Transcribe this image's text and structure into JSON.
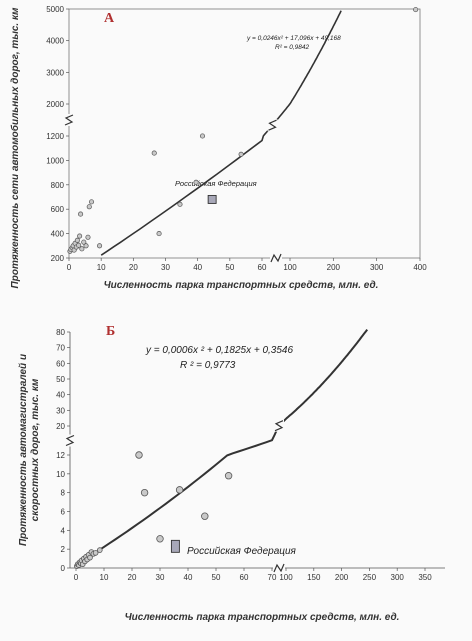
{
  "chart_data": [
    {
      "type": "scatter",
      "panel_label": "А",
      "xlabel": "Численность парка транспортных средств, млн. ед.",
      "ylabel": "Протяженность сети автомобильных дорог, тыс. км",
      "equation": "y = 0,0246x² + 17,096x + 49,168",
      "r2": "R² = 0,9842",
      "annotation": "Российская Федерация",
      "x_ticks_lower": [
        "0",
        "10",
        "20",
        "30",
        "40",
        "50",
        "60"
      ],
      "x_ticks_upper": [
        "100",
        "200",
        "300",
        "400"
      ],
      "y_ticks_lower": [
        "200",
        "400",
        "600",
        "800",
        "1000",
        "1200"
      ],
      "y_ticks_upper": [
        "2000",
        "3000",
        "4000",
        "5000"
      ],
      "axis_break": true,
      "points": [
        {
          "x": 0.3,
          "y": 255
        },
        {
          "x": 0.6,
          "y": 270
        },
        {
          "x": 1.0,
          "y": 285
        },
        {
          "x": 1.3,
          "y": 300
        },
        {
          "x": 1.6,
          "y": 265
        },
        {
          "x": 1.9,
          "y": 320
        },
        {
          "x": 2.3,
          "y": 290
        },
        {
          "x": 2.6,
          "y": 345
        },
        {
          "x": 3.0,
          "y": 305
        },
        {
          "x": 3.3,
          "y": 380
        },
        {
          "x": 3.6,
          "y": 560
        },
        {
          "x": 4.0,
          "y": 275
        },
        {
          "x": 4.6,
          "y": 330
        },
        {
          "x": 5.3,
          "y": 300
        },
        {
          "x": 5.9,
          "y": 370
        },
        {
          "x": 6.3,
          "y": 620
        },
        {
          "x": 7.0,
          "y": 660
        },
        {
          "x": 9.5,
          "y": 300
        },
        {
          "x": 26.5,
          "y": 1060
        },
        {
          "x": 28.0,
          "y": 400
        },
        {
          "x": 34.5,
          "y": 640
        },
        {
          "x": 39.5,
          "y": 820
        },
        {
          "x": 41.5,
          "y": 1200
        },
        {
          "x": 53.5,
          "y": 1050
        },
        {
          "x": 390,
          "y": 4980
        }
      ],
      "highlight": {
        "label": "Российская Федерация",
        "x": 44.5,
        "y": 680
      }
    },
    {
      "type": "scatter",
      "panel_label": "Б",
      "xlabel": "Численность парка транспортных средств, млн. ед.",
      "ylabel": "Протяженность автомагистралей и скоростных дорог, тыс. км",
      "equation": "y = 0,0006x ² + 0,1825x + 0,3546",
      "r2": "R ² = 0,9773",
      "annotation": "Российская Федерация",
      "x_ticks_lower": [
        "0",
        "10",
        "20",
        "30",
        "40",
        "50",
        "60",
        "70"
      ],
      "x_ticks_upper": [
        "100",
        "150",
        "200",
        "250",
        "300",
        "350"
      ],
      "y_ticks_lower": [
        "0",
        "2",
        "4",
        "6",
        "8",
        "10",
        "12"
      ],
      "y_ticks_upper": [
        "20",
        "30",
        "40",
        "50",
        "60",
        "70",
        "80"
      ],
      "axis_break": true,
      "points": [
        {
          "x": 0.3,
          "y": 0.2
        },
        {
          "x": 0.6,
          "y": 0.4
        },
        {
          "x": 1.0,
          "y": 0.3
        },
        {
          "x": 1.3,
          "y": 0.6
        },
        {
          "x": 1.7,
          "y": 0.5
        },
        {
          "x": 2.0,
          "y": 0.8
        },
        {
          "x": 2.4,
          "y": 0.4
        },
        {
          "x": 2.8,
          "y": 1.0
        },
        {
          "x": 3.2,
          "y": 0.7
        },
        {
          "x": 3.6,
          "y": 1.2
        },
        {
          "x": 4.0,
          "y": 0.9
        },
        {
          "x": 4.5,
          "y": 1.4
        },
        {
          "x": 5.0,
          "y": 1.1
        },
        {
          "x": 5.5,
          "y": 1.7
        },
        {
          "x": 6.2,
          "y": 1.5
        },
        {
          "x": 7.0,
          "y": 1.6
        },
        {
          "x": 8.5,
          "y": 1.9
        },
        {
          "x": 22.5,
          "y": 12.0
        },
        {
          "x": 24.5,
          "y": 8.0
        },
        {
          "x": 30.0,
          "y": 3.1
        },
        {
          "x": 37.0,
          "y": 8.3
        },
        {
          "x": 46.0,
          "y": 5.5
        },
        {
          "x": 54.5,
          "y": 9.8
        }
      ],
      "highlight": {
        "label": "Российская Федерация",
        "x": 35.5,
        "y": 2.3
      }
    }
  ],
  "colors": {
    "point_fill": "#c9c9c9",
    "point_stroke": "#555555",
    "line": "#333333",
    "highlight_fill": "#a8a8b8",
    "panel_label": "#b03030"
  }
}
